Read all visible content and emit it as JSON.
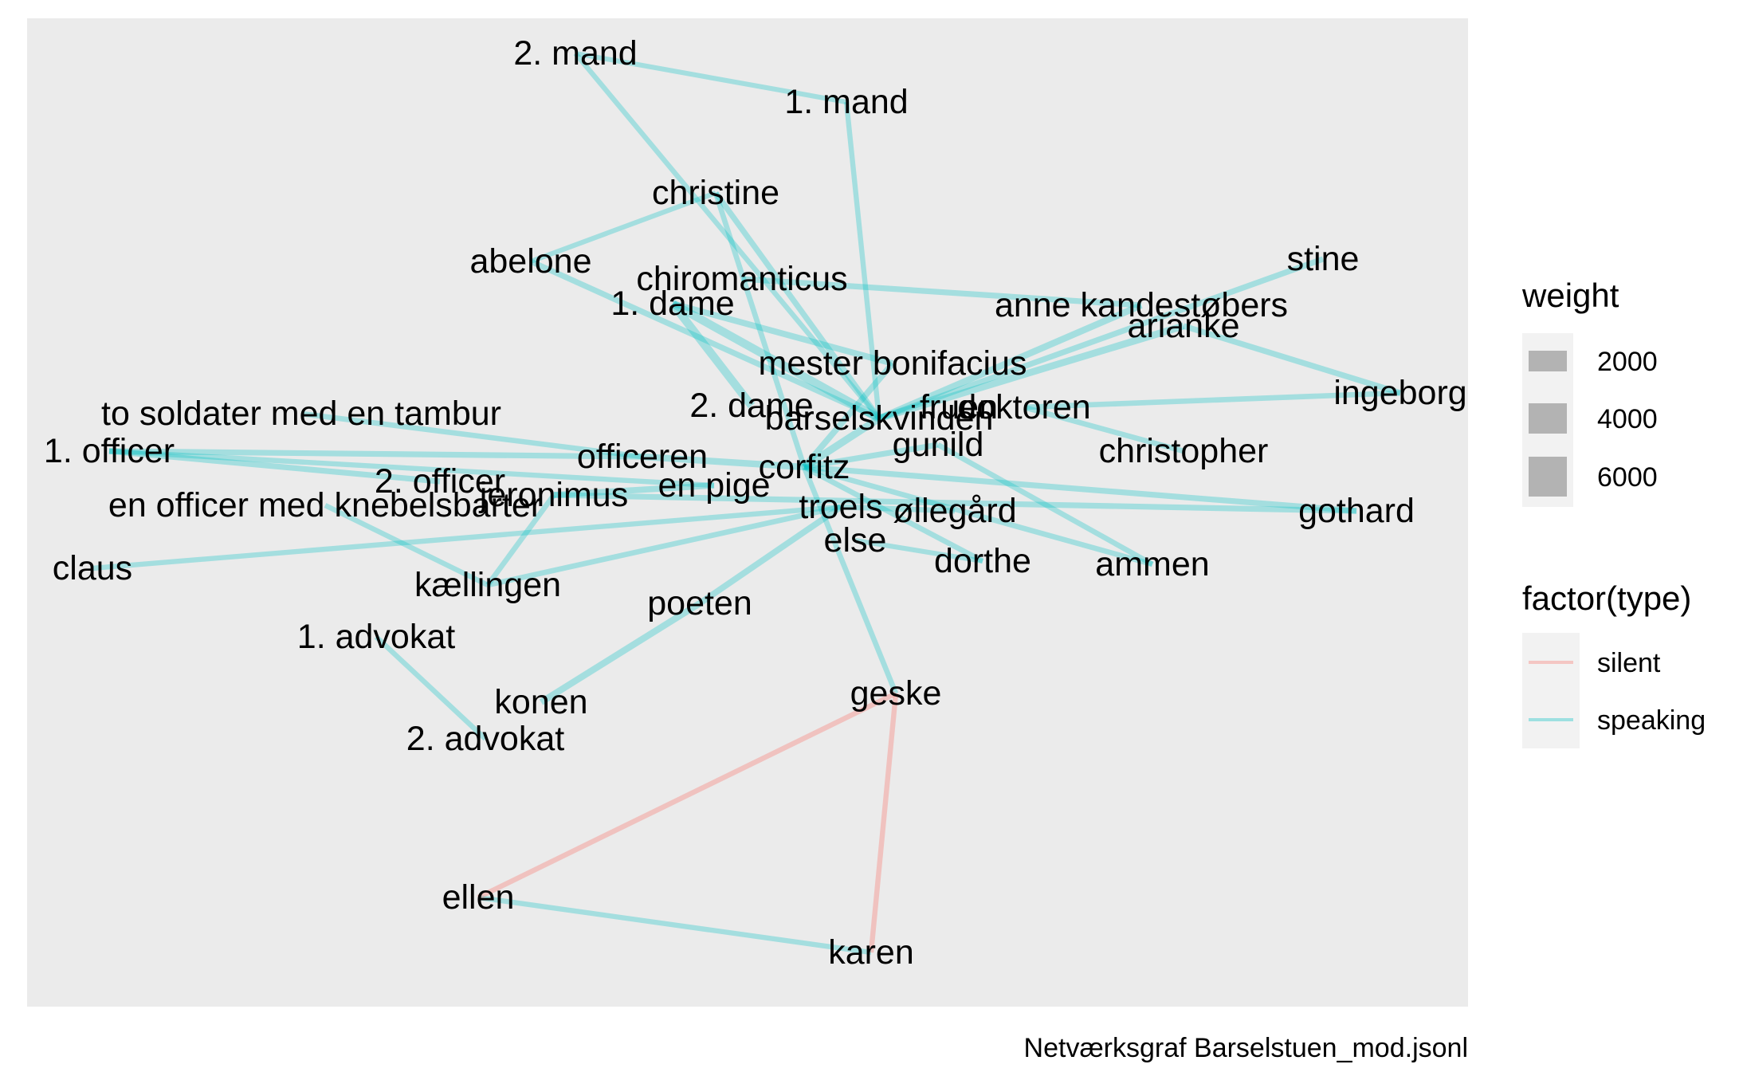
{
  "caption": "Netværksgraf Barselstuen_mod.jsonl",
  "colors": {
    "panel": "#ebebeb",
    "speaking": "#00bfc4",
    "silent": "#f8766d",
    "legend_key_bg": "#f2f2f2",
    "legend_swatch": "#b3b3b3"
  },
  "legend": {
    "weight": {
      "title": "weight",
      "items": [
        {
          "label": "2000",
          "value": 2000
        },
        {
          "label": "4000",
          "value": 4000
        },
        {
          "label": "6000",
          "value": 6000
        }
      ]
    },
    "type": {
      "title": "factor(type)",
      "items": [
        {
          "label": "silent",
          "key": "silent"
        },
        {
          "label": "speaking",
          "key": "speaking"
        }
      ]
    }
  },
  "nodes": [
    {
      "id": "2_mand",
      "label": "2. mand"
    },
    {
      "id": "1_mand",
      "label": "1. mand"
    },
    {
      "id": "christine",
      "label": "christine"
    },
    {
      "id": "abelone",
      "label": "abelone"
    },
    {
      "id": "chiromanticus",
      "label": "chiromanticus"
    },
    {
      "id": "1_dame",
      "label": "1. dame"
    },
    {
      "id": "anne",
      "label": "anne kandestøbers"
    },
    {
      "id": "stine",
      "label": "stine"
    },
    {
      "id": "arianke",
      "label": "arianke"
    },
    {
      "id": "mester",
      "label": "mester bonifacius"
    },
    {
      "id": "ingeborg",
      "label": "ingeborg"
    },
    {
      "id": "2_dame",
      "label": "2. dame"
    },
    {
      "id": "barsel",
      "label": "barselskvinden"
    },
    {
      "id": "fruen",
      "label": "fruen"
    },
    {
      "id": "doktoren",
      "label": "doktoren"
    },
    {
      "id": "to_soldater",
      "label": "to soldater med en tambur"
    },
    {
      "id": "1_officer",
      "label": "1. officer"
    },
    {
      "id": "officeren",
      "label": "officeren"
    },
    {
      "id": "gunild",
      "label": "gunild"
    },
    {
      "id": "christopher",
      "label": "christopher"
    },
    {
      "id": "2_officer",
      "label": "2. officer"
    },
    {
      "id": "corfitz",
      "label": "corfitz"
    },
    {
      "id": "jeronimus",
      "label": "jeronimus"
    },
    {
      "id": "en_pige",
      "label": "en pige"
    },
    {
      "id": "en_officer",
      "label": "en officer med knebelsbarter"
    },
    {
      "id": "troels",
      "label": "troels"
    },
    {
      "id": "ollegard",
      "label": "øllegård"
    },
    {
      "id": "gothard",
      "label": "gothard"
    },
    {
      "id": "else",
      "label": "else"
    },
    {
      "id": "claus",
      "label": "claus"
    },
    {
      "id": "dorthe",
      "label": "dorthe"
    },
    {
      "id": "ammen",
      "label": "ammen"
    },
    {
      "id": "kaellingen",
      "label": "kællingen"
    },
    {
      "id": "poeten",
      "label": "poeten"
    },
    {
      "id": "1_advokat",
      "label": "1. advokat"
    },
    {
      "id": "geske",
      "label": "geske"
    },
    {
      "id": "konen",
      "label": "konen"
    },
    {
      "id": "2_advokat",
      "label": "2. advokat"
    },
    {
      "id": "ellen",
      "label": "ellen"
    },
    {
      "id": "karen",
      "label": "karen"
    }
  ],
  "edges": [
    {
      "from": "2_mand",
      "to": "1_mand",
      "type": "speaking",
      "weight": 800
    },
    {
      "from": "2_mand",
      "to": "barsel",
      "type": "speaking",
      "weight": 900
    },
    {
      "from": "1_mand",
      "to": "barsel",
      "type": "speaking",
      "weight": 900
    },
    {
      "from": "christine",
      "to": "abelone",
      "type": "speaking",
      "weight": 800
    },
    {
      "from": "christine",
      "to": "barsel",
      "type": "speaking",
      "weight": 1200
    },
    {
      "from": "christine",
      "to": "corfitz",
      "type": "speaking",
      "weight": 1000
    },
    {
      "from": "abelone",
      "to": "barsel",
      "type": "speaking",
      "weight": 1200
    },
    {
      "from": "chiromanticus",
      "to": "anne",
      "type": "speaking",
      "weight": 1200
    },
    {
      "from": "1_dame",
      "to": "barsel",
      "type": "speaking",
      "weight": 2400
    },
    {
      "from": "1_dame",
      "to": "2_dame",
      "type": "speaking",
      "weight": 2400
    },
    {
      "from": "1_dame",
      "to": "mester",
      "type": "speaking",
      "weight": 1400
    },
    {
      "from": "stine",
      "to": "barsel",
      "type": "speaking",
      "weight": 1200
    },
    {
      "from": "arianke",
      "to": "barsel",
      "type": "speaking",
      "weight": 1800
    },
    {
      "from": "arianke",
      "to": "ingeborg",
      "type": "speaking",
      "weight": 1200
    },
    {
      "from": "anne",
      "to": "barsel",
      "type": "speaking",
      "weight": 1600
    },
    {
      "from": "mester",
      "to": "corfitz",
      "type": "speaking",
      "weight": 1400
    },
    {
      "from": "doktoren",
      "to": "ingeborg",
      "type": "speaking",
      "weight": 1000
    },
    {
      "from": "doktoren",
      "to": "christopher",
      "type": "speaking",
      "weight": 1000
    },
    {
      "from": "barsel",
      "to": "corfitz",
      "type": "speaking",
      "weight": 2000
    },
    {
      "from": "to_soldater",
      "to": "officeren",
      "type": "speaking",
      "weight": 1000
    },
    {
      "from": "1_officer",
      "to": "officeren",
      "type": "speaking",
      "weight": 1200
    },
    {
      "from": "1_officer",
      "to": "2_officer",
      "type": "speaking",
      "weight": 1200
    },
    {
      "from": "1_officer",
      "to": "en_pige",
      "type": "speaking",
      "weight": 900
    },
    {
      "from": "officeren",
      "to": "corfitz",
      "type": "speaking",
      "weight": 1600
    },
    {
      "from": "en_officer",
      "to": "kaellingen",
      "type": "speaking",
      "weight": 900
    },
    {
      "from": "jeronimus",
      "to": "gothard",
      "type": "speaking",
      "weight": 1200
    },
    {
      "from": "jeronimus",
      "to": "kaellingen",
      "type": "speaking",
      "weight": 1000
    },
    {
      "from": "jeronimus",
      "to": "en_pige",
      "type": "speaking",
      "weight": 1400
    },
    {
      "from": "corfitz",
      "to": "gothard",
      "type": "speaking",
      "weight": 1200
    },
    {
      "from": "corfitz",
      "to": "ammen",
      "type": "speaking",
      "weight": 1000
    },
    {
      "from": "corfitz",
      "to": "dorthe",
      "type": "speaking",
      "weight": 1000
    },
    {
      "from": "corfitz",
      "to": "gunild",
      "type": "speaking",
      "weight": 1200
    },
    {
      "from": "troels",
      "to": "claus",
      "type": "speaking",
      "weight": 900
    },
    {
      "from": "troels",
      "to": "kaellingen",
      "type": "speaking",
      "weight": 1000
    },
    {
      "from": "troels",
      "to": "ollegard",
      "type": "speaking",
      "weight": 1000
    },
    {
      "from": "gunild",
      "to": "ammen",
      "type": "speaking",
      "weight": 1000
    },
    {
      "from": "else",
      "to": "dorthe",
      "type": "speaking",
      "weight": 800
    },
    {
      "from": "poeten",
      "to": "konen",
      "type": "speaking",
      "weight": 1600
    },
    {
      "from": "poeten",
      "to": "troels",
      "type": "speaking",
      "weight": 1400
    },
    {
      "from": "1_advokat",
      "to": "2_advokat",
      "type": "speaking",
      "weight": 900
    },
    {
      "from": "geske",
      "to": "corfitz",
      "type": "speaking",
      "weight": 1000
    },
    {
      "from": "ellen",
      "to": "karen",
      "type": "speaking",
      "weight": 900
    },
    {
      "from": "geske",
      "to": "ellen",
      "type": "silent",
      "weight": 900
    },
    {
      "from": "geske",
      "to": "karen",
      "type": "silent",
      "weight": 900
    }
  ]
}
